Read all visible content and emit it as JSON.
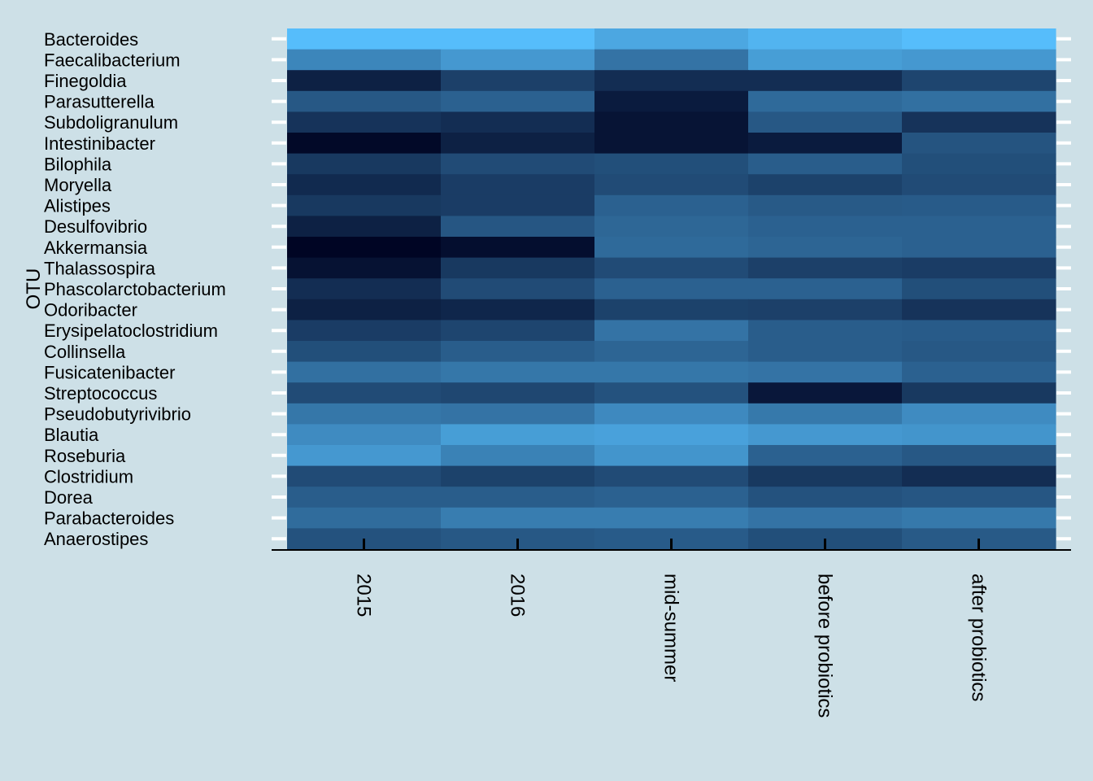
{
  "chart_data": {
    "type": "heatmap",
    "title": "",
    "xlabel": "",
    "ylabel": "OTU",
    "legend": "none",
    "grid": false,
    "x": [
      "2015",
      "2016",
      "mid-summer",
      "before probiotics",
      "after probiotics"
    ],
    "y": [
      "Bacteroides",
      "Faecalibacterium",
      "Finegoldia",
      "Parasutterella",
      "Subdoligranulum",
      "Intestinibacter",
      "Bilophila",
      "Moryella",
      "Alistipes",
      "Desulfovibrio",
      "Akkermansia",
      "Thalassospira",
      "Phascolarctobacterium",
      "Odoribacter",
      "Erysipelatoclostridium",
      "Collinsella",
      "Fusicatenibacter",
      "Streptococcus",
      "Pseudobutyrivibrio",
      "Blautia",
      "Roseburia",
      "Clostridium",
      "Dorea",
      "Parabacteroides",
      "Anaerostipes"
    ],
    "color_scale": {
      "low": "#000524",
      "high": "#56bdfb"
    },
    "values": [
      [
        1.0,
        1.0,
        0.88,
        0.95,
        1.0
      ],
      [
        0.7,
        0.8,
        0.6,
        0.83,
        0.8
      ],
      [
        0.15,
        0.32,
        0.22,
        0.22,
        0.35
      ],
      [
        0.45,
        0.5,
        0.12,
        0.55,
        0.58
      ],
      [
        0.25,
        0.22,
        0.08,
        0.45,
        0.25
      ],
      [
        0.02,
        0.15,
        0.08,
        0.12,
        0.43
      ],
      [
        0.28,
        0.38,
        0.4,
        0.48,
        0.4
      ],
      [
        0.2,
        0.3,
        0.38,
        0.33,
        0.38
      ],
      [
        0.28,
        0.3,
        0.5,
        0.46,
        0.47
      ],
      [
        0.15,
        0.44,
        0.53,
        0.5,
        0.5
      ],
      [
        0.0,
        0.05,
        0.55,
        0.52,
        0.5
      ],
      [
        0.07,
        0.28,
        0.38,
        0.32,
        0.3
      ],
      [
        0.22,
        0.38,
        0.5,
        0.5,
        0.4
      ],
      [
        0.15,
        0.18,
        0.33,
        0.32,
        0.25
      ],
      [
        0.3,
        0.35,
        0.6,
        0.48,
        0.47
      ],
      [
        0.4,
        0.48,
        0.52,
        0.48,
        0.45
      ],
      [
        0.58,
        0.62,
        0.62,
        0.6,
        0.5
      ],
      [
        0.38,
        0.36,
        0.42,
        0.1,
        0.28
      ],
      [
        0.62,
        0.6,
        0.72,
        0.63,
        0.73
      ],
      [
        0.73,
        0.83,
        0.85,
        0.8,
        0.78
      ],
      [
        0.8,
        0.68,
        0.78,
        0.5,
        0.45
      ],
      [
        0.38,
        0.33,
        0.38,
        0.28,
        0.22
      ],
      [
        0.48,
        0.48,
        0.5,
        0.42,
        0.44
      ],
      [
        0.56,
        0.65,
        0.65,
        0.6,
        0.63
      ],
      [
        0.42,
        0.45,
        0.47,
        0.4,
        0.46
      ]
    ]
  }
}
